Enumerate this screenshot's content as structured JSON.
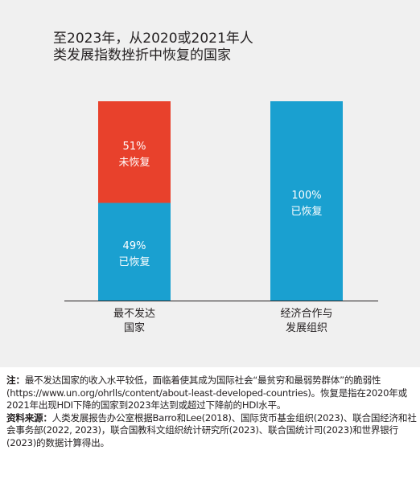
{
  "chart_data": {
    "type": "bar",
    "stacked": true,
    "title": "至2023年，从2020或2021年人类发展指数挫折中恢复的国家",
    "title_lines": [
      "至2023年，从2020或2021年人",
      "类发展指数挫折中恢复的国家"
    ],
    "categories": [
      "最不发达国家",
      "经济合作与发展组织"
    ],
    "category_lines": [
      [
        "最不发达",
        "国家"
      ],
      [
        "经济合作与",
        "发展组织"
      ]
    ],
    "series": [
      {
        "name": "已恢复",
        "values": [
          49,
          100
        ],
        "color": "#1aa0d0"
      },
      {
        "name": "未恢复",
        "values": [
          51,
          0
        ],
        "color": "#e8412c"
      }
    ],
    "bar_labels": [
      [
        [
          "49%",
          "已恢复"
        ],
        [
          "51%",
          "未恢复"
        ]
      ],
      [
        [
          "100%",
          "已恢复"
        ],
        null
      ]
    ],
    "ylim": [
      0,
      100
    ],
    "grid": false,
    "legend": "none"
  },
  "notes": {
    "note_label": "注：",
    "note_text": "最不发达国家的收入水平较低，面临着使其成为国际社会“最贫穷和最弱势群体”的脆弱性(https://www.un.org/ohrlls/content/about-least-developed-countries)。恢复是指在2020年或2021年出现HDI下降的国家到2023年达到或超过下降前的HDI水平。",
    "source_label": "资料来源：",
    "source_text": "人类发展报告办公室根据Barro和Lee(2018)、国际货币基金组织(2023)、联合国经济和社会事务部(2022, 2023)，联合国教科文组织统计研究所(2023)、联合国统计司(2023)和世界银行(2023)的数据计算得出。"
  }
}
